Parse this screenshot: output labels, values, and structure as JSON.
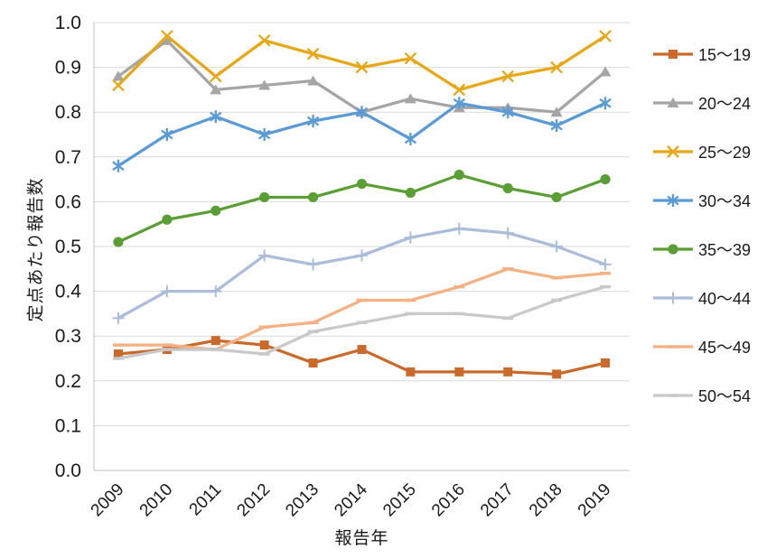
{
  "chart_data": {
    "type": "line",
    "title": "",
    "xlabel": "報告年",
    "ylabel": "定点あたり報告数",
    "x": [
      "2009",
      "2010",
      "2011",
      "2012",
      "2013",
      "2014",
      "2015",
      "2016",
      "2017",
      "2018",
      "2019"
    ],
    "ylim": [
      0.0,
      1.0
    ],
    "ytick_step": 0.1,
    "ytick_format_decimals": 1,
    "grid": "horizontal",
    "legend_position": "right",
    "series": [
      {
        "name": "15〜19",
        "color": "#C96A2C",
        "marker": "square",
        "values": [
          0.26,
          0.27,
          0.29,
          0.28,
          0.24,
          0.27,
          0.22,
          0.22,
          0.22,
          0.215,
          0.24
        ]
      },
      {
        "name": "20〜24",
        "color": "#A5A5A5",
        "marker": "triangle",
        "values": [
          0.88,
          0.96,
          0.85,
          0.86,
          0.87,
          0.8,
          0.83,
          0.81,
          0.81,
          0.8,
          0.89
        ]
      },
      {
        "name": "25〜29",
        "color": "#E6A817",
        "marker": "x",
        "values": [
          0.86,
          0.97,
          0.88,
          0.96,
          0.93,
          0.9,
          0.92,
          0.85,
          0.88,
          0.9,
          0.97
        ]
      },
      {
        "name": "30〜34",
        "color": "#5B9BD5",
        "marker": "asterisk",
        "values": [
          0.68,
          0.75,
          0.79,
          0.75,
          0.78,
          0.8,
          0.74,
          0.82,
          0.8,
          0.77,
          0.82
        ]
      },
      {
        "name": "35〜39",
        "color": "#5C9E36",
        "marker": "circle",
        "values": [
          0.51,
          0.56,
          0.58,
          0.61,
          0.61,
          0.64,
          0.62,
          0.66,
          0.63,
          0.61,
          0.65
        ]
      },
      {
        "name": "40〜44",
        "color": "#ABBDD8",
        "marker": "plus",
        "values": [
          0.34,
          0.4,
          0.4,
          0.48,
          0.46,
          0.48,
          0.52,
          0.54,
          0.53,
          0.5,
          0.46
        ]
      },
      {
        "name": "45〜49",
        "color": "#F4B183",
        "marker": "dash",
        "values": [
          0.28,
          0.28,
          0.27,
          0.32,
          0.33,
          0.38,
          0.38,
          0.41,
          0.45,
          0.43,
          0.44
        ]
      },
      {
        "name": "50〜54",
        "color": "#C9C9C9",
        "marker": "dash",
        "values": [
          0.25,
          0.27,
          0.27,
          0.26,
          0.31,
          0.33,
          0.35,
          0.35,
          0.34,
          0.38,
          0.41
        ]
      }
    ]
  },
  "colors": {
    "grid": "#D9D9D9",
    "axis_line": "#BFBFBF",
    "tick_text": "#1A1A1A"
  }
}
